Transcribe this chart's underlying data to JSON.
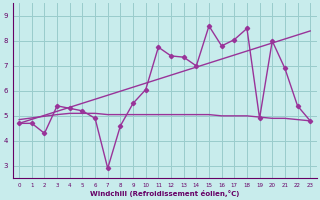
{
  "bg_color": "#c8ecec",
  "line_color": "#993399",
  "grid_color": "#99cccc",
  "xlabel": "Windchill (Refroidissement éolien,°C)",
  "xlim": [
    -0.5,
    23.5
  ],
  "ylim": [
    2.5,
    9.5
  ],
  "yticks": [
    3,
    4,
    5,
    6,
    7,
    8,
    9
  ],
  "xticks": [
    0,
    1,
    2,
    3,
    4,
    5,
    6,
    7,
    8,
    9,
    10,
    11,
    12,
    13,
    14,
    15,
    16,
    17,
    18,
    19,
    20,
    21,
    22,
    23
  ],
  "data_x": [
    0,
    1,
    2,
    3,
    4,
    5,
    6,
    7,
    8,
    9,
    10,
    11,
    12,
    13,
    14,
    15,
    16,
    17,
    18,
    19,
    20,
    21,
    22,
    23
  ],
  "data_y": [
    4.7,
    4.7,
    4.3,
    5.4,
    5.3,
    5.2,
    4.9,
    2.9,
    4.6,
    5.5,
    6.05,
    7.75,
    7.4,
    7.35,
    7.0,
    8.6,
    7.8,
    8.05,
    8.5,
    4.9,
    8.0,
    6.9,
    5.4,
    4.8
  ],
  "flat_x": [
    0,
    3,
    4,
    5,
    6,
    7,
    8,
    9,
    10,
    11,
    12,
    13,
    14,
    15,
    16,
    17,
    18,
    19,
    20,
    21,
    22,
    23
  ],
  "flat_y": [
    4.85,
    5.05,
    5.1,
    5.1,
    5.1,
    5.05,
    5.05,
    5.05,
    5.05,
    5.05,
    5.05,
    5.05,
    5.05,
    5.05,
    5.0,
    5.0,
    5.0,
    4.95,
    4.9,
    4.9,
    4.85,
    4.8
  ],
  "trend_x": [
    0,
    23
  ],
  "trend_y": [
    4.7,
    8.4
  ]
}
